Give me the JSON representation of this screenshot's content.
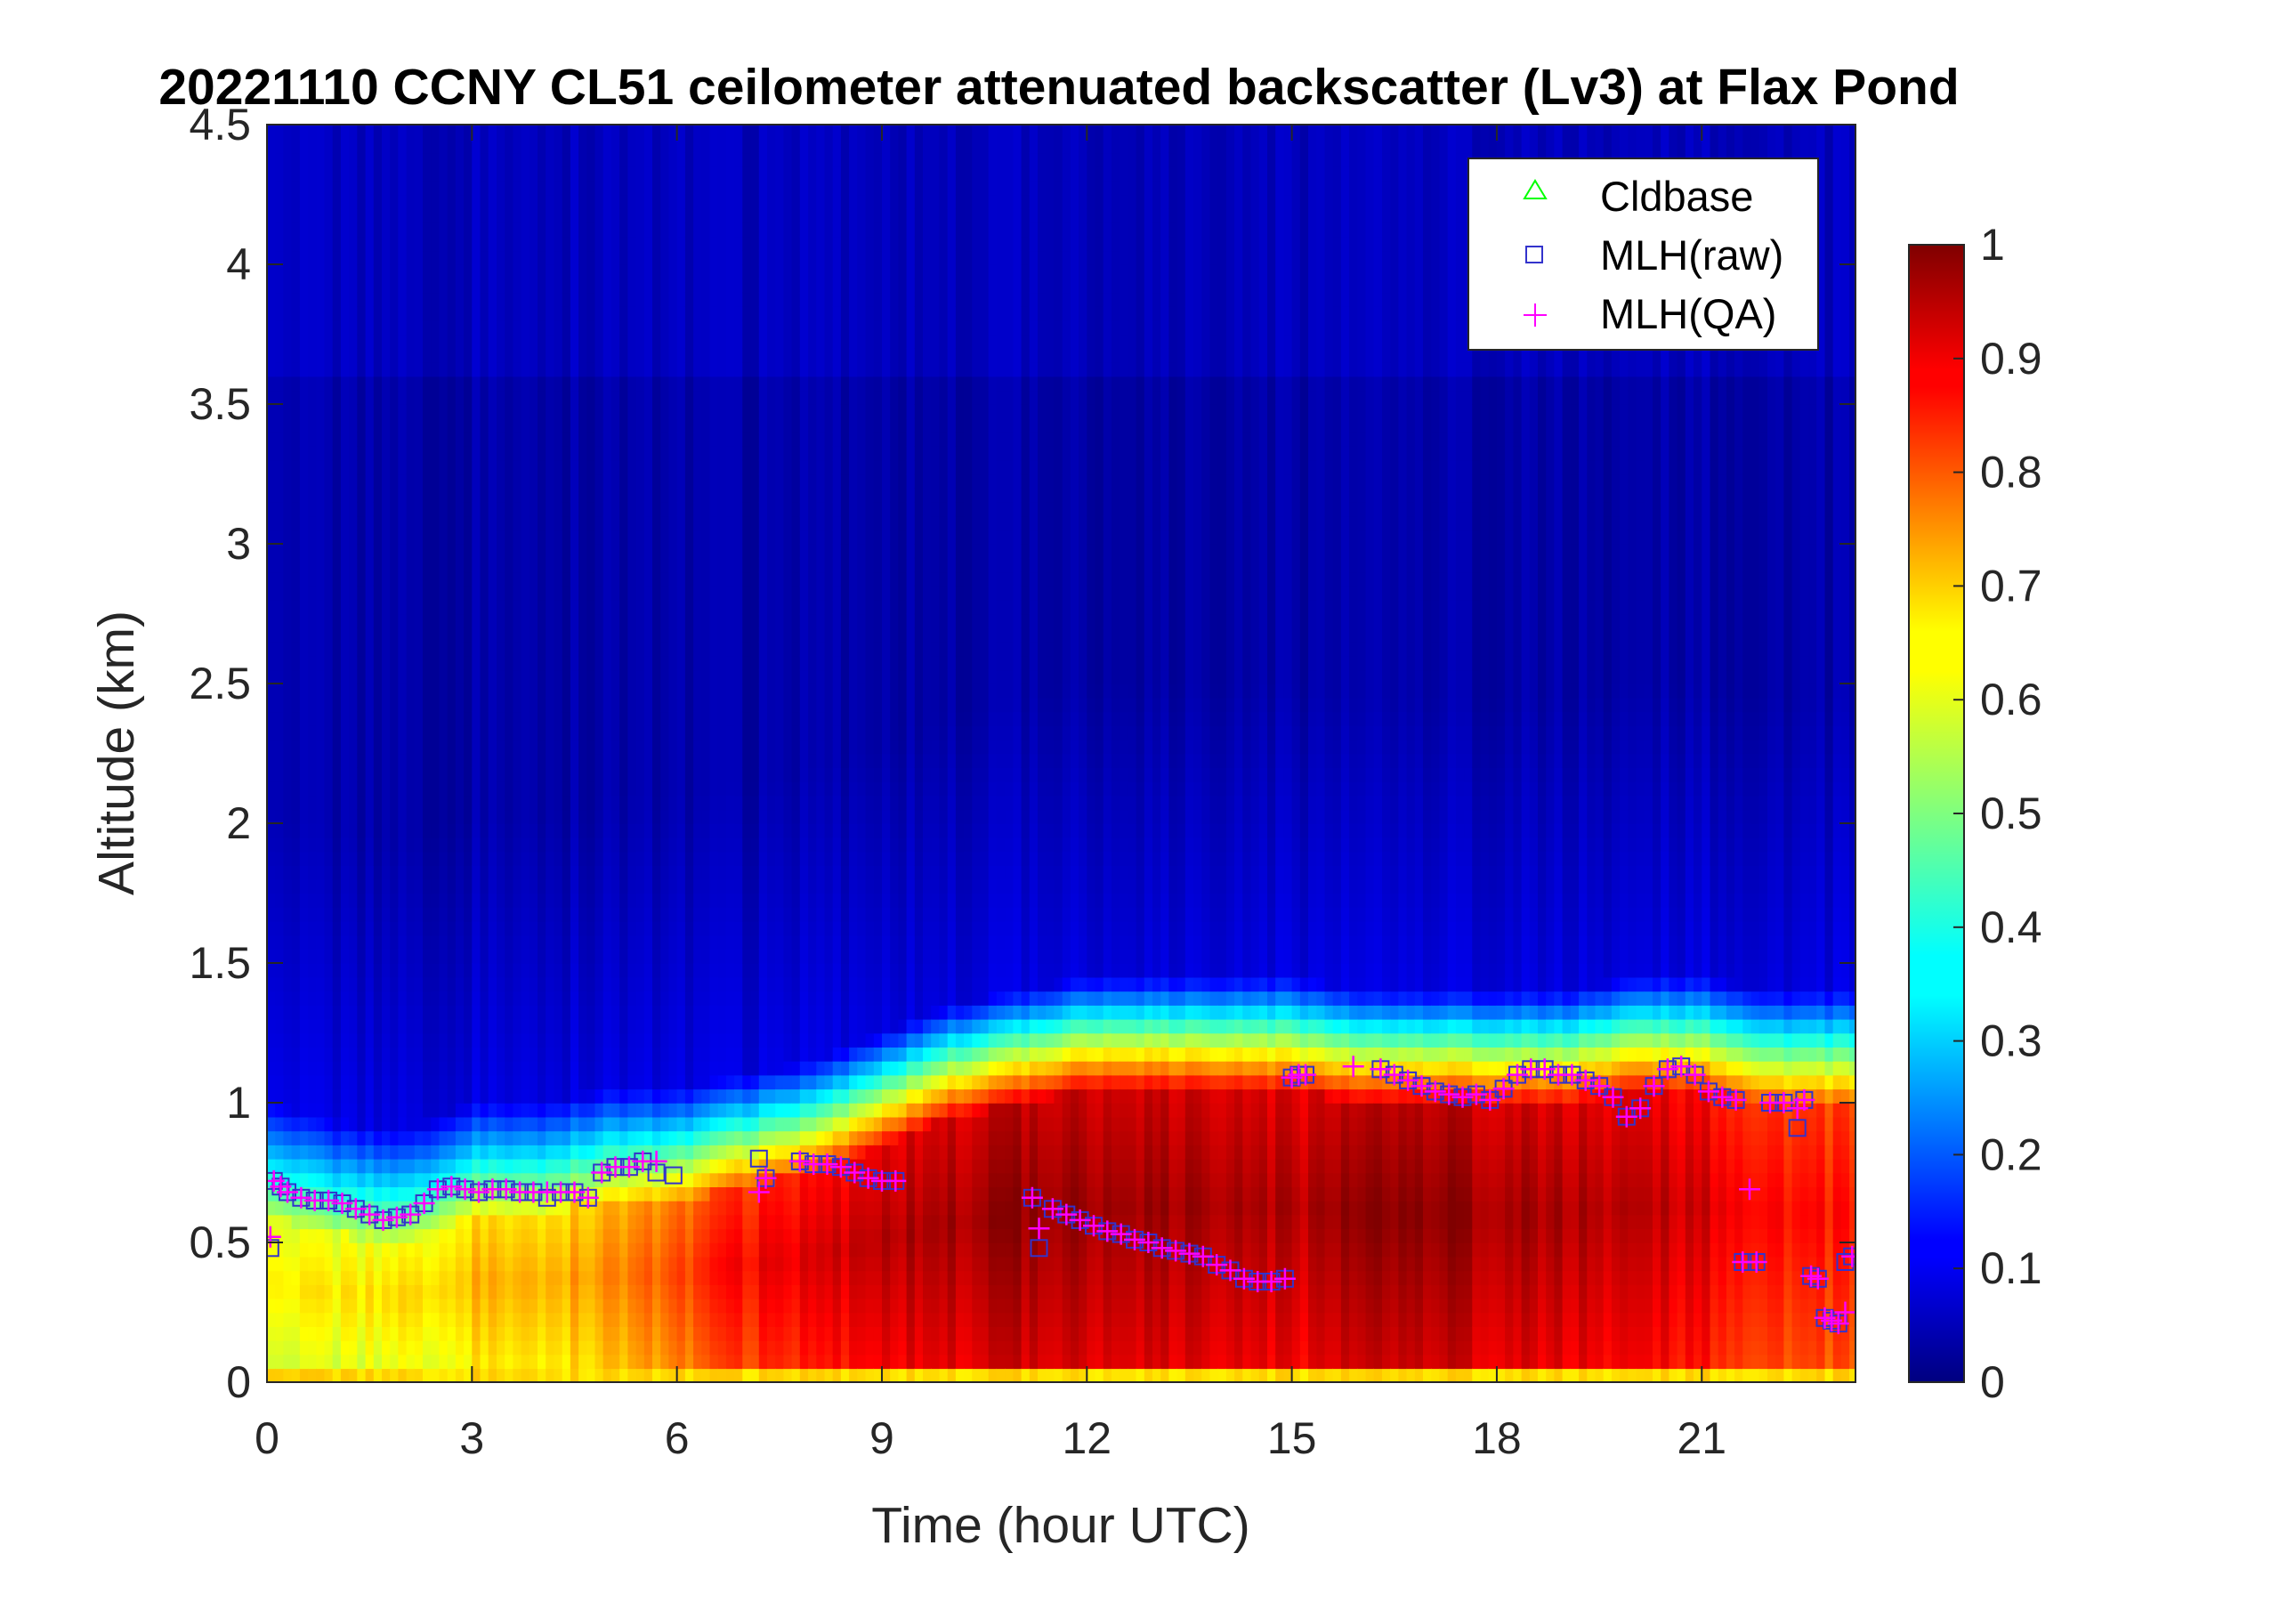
{
  "chart_data": {
    "type": "heatmap",
    "title": "20221110 CCNY CL51 ceilometer attenuated backscatter (Lv3) at Flax Pond",
    "xlabel": "Time (hour UTC)",
    "ylabel": "Altitude (km)",
    "xlim": [
      0,
      23.25
    ],
    "ylim": [
      0,
      4.5
    ],
    "xticks": [
      0,
      3,
      6,
      9,
      12,
      15,
      18,
      21
    ],
    "xtick_labels": [
      "0",
      "3",
      "6",
      "9",
      "12",
      "15",
      "18",
      "21"
    ],
    "yticks": [
      0,
      0.5,
      1,
      1.5,
      2,
      2.5,
      3,
      3.5,
      4,
      4.5
    ],
    "ytick_labels": [
      "0",
      "0.5",
      "1",
      "1.5",
      "2",
      "2.5",
      "3",
      "3.5",
      "4",
      "4.5"
    ],
    "colorbar": {
      "colormap": "jet",
      "range": [
        0,
        1
      ],
      "ticks": [
        0,
        0.1,
        0.2,
        0.3,
        0.4,
        0.5,
        0.6,
        0.7,
        0.8,
        0.9,
        1
      ],
      "tick_labels": [
        "0",
        "0.1",
        "0.2",
        "0.3",
        "0.4",
        "0.5",
        "0.6",
        "0.7",
        "0.8",
        "0.9",
        "1"
      ]
    },
    "legend": {
      "placement": "top-right",
      "entries": [
        {
          "label": "Cldbase",
          "marker": "triangle",
          "color": "#00ff00"
        },
        {
          "label": "MLH(raw)",
          "marker": "square",
          "color": "#3333cc"
        },
        {
          "label": "MLH(QA)",
          "marker": "plus",
          "color": "#ff00ff"
        }
      ]
    },
    "background": {
      "description_levels": "estimated profile of normalized backscatter vs time",
      "profiles": [
        {
          "t": 0,
          "mlh": 0.72,
          "core": 0.62,
          "gradient_top": 0.85
        },
        {
          "t": 1,
          "mlh": 0.64,
          "core": 0.64,
          "gradient_top": 0.78
        },
        {
          "t": 2,
          "mlh": 0.6,
          "core": 0.66,
          "gradient_top": 0.75
        },
        {
          "t": 3,
          "mlh": 0.7,
          "core": 0.7,
          "gradient_top": 0.85
        },
        {
          "t": 4,
          "mlh": 0.68,
          "core": 0.7,
          "gradient_top": 0.85
        },
        {
          "t": 5,
          "mlh": 0.75,
          "core": 0.74,
          "gradient_top": 0.9
        },
        {
          "t": 6,
          "mlh": 0.78,
          "core": 0.8,
          "gradient_top": 0.9
        },
        {
          "t": 7,
          "mlh": 0.78,
          "core": 0.88,
          "gradient_top": 0.95
        },
        {
          "t": 8,
          "mlh": 0.78,
          "core": 0.9,
          "gradient_top": 1.0
        },
        {
          "t": 9,
          "mlh": 0.72,
          "core": 0.95,
          "gradient_top": 1.1
        },
        {
          "t": 10,
          "mlh": 0.7,
          "core": 0.97,
          "gradient_top": 1.2
        },
        {
          "t": 11,
          "mlh": 0.65,
          "core": 0.98,
          "gradient_top": 1.25
        },
        {
          "t": 12,
          "mlh": 0.55,
          "core": 0.98,
          "gradient_top": 1.3
        },
        {
          "t": 13,
          "mlh": 0.48,
          "core": 0.98,
          "gradient_top": 1.3
        },
        {
          "t": 14,
          "mlh": 0.42,
          "core": 0.97,
          "gradient_top": 1.3
        },
        {
          "t": 15,
          "mlh": 0.37,
          "core": 0.95,
          "gradient_top": 1.3
        },
        {
          "t": 16,
          "mlh": 1.1,
          "core": 0.98,
          "gradient_top": 1.25
        },
        {
          "t": 17,
          "mlh": 1.05,
          "core": 0.99,
          "gradient_top": 1.25
        },
        {
          "t": 18,
          "mlh": 1.03,
          "core": 0.97,
          "gradient_top": 1.25
        },
        {
          "t": 19,
          "mlh": 1.1,
          "core": 0.96,
          "gradient_top": 1.25
        },
        {
          "t": 20,
          "mlh": 0.95,
          "core": 0.95,
          "gradient_top": 1.3
        },
        {
          "t": 21,
          "mlh": 1.05,
          "core": 0.92,
          "gradient_top": 1.3
        },
        {
          "t": 22,
          "mlh": 1.0,
          "core": 0.88,
          "gradient_top": 1.25
        },
        {
          "t": 23.25,
          "mlh": 1.0,
          "core": 0.85,
          "gradient_top": 1.25
        }
      ]
    },
    "series": [
      {
        "name": "MLH(raw)",
        "marker": "square",
        "color": "#3333cc",
        "x": [
          0.05,
          0.1,
          0.2,
          0.3,
          0.5,
          0.7,
          0.9,
          1.1,
          1.3,
          1.5,
          1.7,
          1.9,
          2.1,
          2.3,
          2.5,
          2.7,
          2.9,
          3.1,
          3.3,
          3.5,
          3.7,
          3.9,
          4.1,
          4.3,
          4.5,
          4.7,
          4.9,
          5.1,
          5.3,
          5.5,
          5.7,
          5.95,
          7.2,
          7.3,
          7.8,
          8.0,
          8.2,
          8.4,
          8.6,
          8.8,
          9.0,
          9.2,
          11.2,
          11.3,
          11.5,
          11.7,
          11.9,
          12.1,
          12.3,
          12.5,
          12.7,
          12.9,
          13.1,
          13.3,
          13.5,
          13.7,
          13.9,
          14.1,
          14.3,
          14.5,
          14.7,
          14.9,
          15.0,
          15.1,
          15.2,
          16.3,
          16.5,
          16.7,
          16.9,
          17.1,
          17.3,
          17.5,
          17.7,
          17.9,
          18.1,
          18.3,
          18.5,
          18.7,
          18.9,
          19.1,
          19.3,
          19.5,
          19.7,
          19.9,
          20.1,
          20.3,
          20.5,
          20.7,
          20.9,
          21.1,
          21.3,
          21.5,
          21.6,
          21.7,
          21.8,
          22.0,
          22.2,
          22.4,
          22.5,
          22.6,
          22.7,
          22.8,
          22.9,
          23.0,
          23.1,
          23.2
        ],
        "y": [
          0.48,
          0.72,
          0.7,
          0.68,
          0.66,
          0.65,
          0.65,
          0.64,
          0.62,
          0.6,
          0.58,
          0.59,
          0.6,
          0.64,
          0.69,
          0.7,
          0.69,
          0.68,
          0.69,
          0.69,
          0.68,
          0.68,
          0.66,
          0.68,
          0.68,
          0.66,
          0.75,
          0.77,
          0.77,
          0.79,
          0.75,
          0.74,
          0.8,
          0.73,
          0.79,
          0.78,
          0.78,
          0.77,
          0.75,
          0.73,
          0.72,
          0.72,
          0.66,
          0.48,
          0.62,
          0.6,
          0.58,
          0.56,
          0.54,
          0.53,
          0.51,
          0.5,
          0.48,
          0.47,
          0.46,
          0.45,
          0.42,
          0.4,
          0.37,
          0.36,
          0.36,
          0.37,
          1.09,
          1.1,
          1.1,
          1.12,
          1.1,
          1.08,
          1.06,
          1.04,
          1.03,
          1.02,
          1.03,
          1.01,
          1.05,
          1.1,
          1.12,
          1.12,
          1.1,
          1.1,
          1.08,
          1.06,
          1.02,
          0.95,
          0.98,
          1.06,
          1.12,
          1.13,
          1.1,
          1.04,
          1.02,
          1.01,
          0.43,
          0.43,
          0.43,
          1.0,
          1.0,
          0.91,
          1.01,
          0.38,
          0.37,
          0.23,
          0.22,
          0.21,
          0.43,
          0.45
        ]
      },
      {
        "name": "MLH(QA)",
        "marker": "plus",
        "color": "#ff00ff",
        "x": [
          0.05,
          0.1,
          0.2,
          0.3,
          0.5,
          0.7,
          0.9,
          1.1,
          1.3,
          1.5,
          1.7,
          1.9,
          2.1,
          2.3,
          2.5,
          2.7,
          2.9,
          3.1,
          3.3,
          3.5,
          3.7,
          3.9,
          4.1,
          4.3,
          4.5,
          4.7,
          4.9,
          5.1,
          5.3,
          5.5,
          5.7,
          7.2,
          7.3,
          7.8,
          8.0,
          8.2,
          8.4,
          8.6,
          8.8,
          9.0,
          9.2,
          11.2,
          11.3,
          11.5,
          11.7,
          11.9,
          12.1,
          12.3,
          12.5,
          12.7,
          12.9,
          13.1,
          13.3,
          13.5,
          13.7,
          13.9,
          14.1,
          14.3,
          14.5,
          14.7,
          14.9,
          15.0,
          15.1,
          15.2,
          15.9,
          16.3,
          16.5,
          16.7,
          16.9,
          17.1,
          17.3,
          17.5,
          17.7,
          17.9,
          18.1,
          18.3,
          18.5,
          18.7,
          18.9,
          19.1,
          19.3,
          19.5,
          19.7,
          19.9,
          20.1,
          20.3,
          20.5,
          20.7,
          20.9,
          21.1,
          21.3,
          21.5,
          21.6,
          21.7,
          21.8,
          22.0,
          22.2,
          22.4,
          22.5,
          22.6,
          22.7,
          22.8,
          22.9,
          23.0,
          23.1,
          23.2
        ],
        "y": [
          0.52,
          0.72,
          0.7,
          0.68,
          0.66,
          0.65,
          0.65,
          0.64,
          0.62,
          0.6,
          0.58,
          0.59,
          0.6,
          0.64,
          0.69,
          0.7,
          0.69,
          0.68,
          0.69,
          0.69,
          0.68,
          0.68,
          0.68,
          0.68,
          0.68,
          0.66,
          0.75,
          0.77,
          0.77,
          0.79,
          0.79,
          0.68,
          0.73,
          0.79,
          0.78,
          0.78,
          0.77,
          0.75,
          0.73,
          0.72,
          0.72,
          0.66,
          0.55,
          0.62,
          0.6,
          0.58,
          0.56,
          0.54,
          0.53,
          0.51,
          0.5,
          0.48,
          0.47,
          0.46,
          0.45,
          0.42,
          0.4,
          0.37,
          0.36,
          0.36,
          0.37,
          1.09,
          1.1,
          1.1,
          1.13,
          1.12,
          1.1,
          1.08,
          1.06,
          1.04,
          1.03,
          1.02,
          1.03,
          1.01,
          1.05,
          1.1,
          1.12,
          1.12,
          1.1,
          1.1,
          1.08,
          1.06,
          1.02,
          0.95,
          0.98,
          1.06,
          1.12,
          1.13,
          1.1,
          1.04,
          1.02,
          1.01,
          0.43,
          0.69,
          0.43,
          1.0,
          1.0,
          0.98,
          1.01,
          0.38,
          0.37,
          0.23,
          0.22,
          0.21,
          0.25,
          0.45
        ]
      },
      {
        "name": "Cldbase",
        "marker": "triangle",
        "color": "#00ff00",
        "x": [],
        "y": []
      }
    ]
  }
}
